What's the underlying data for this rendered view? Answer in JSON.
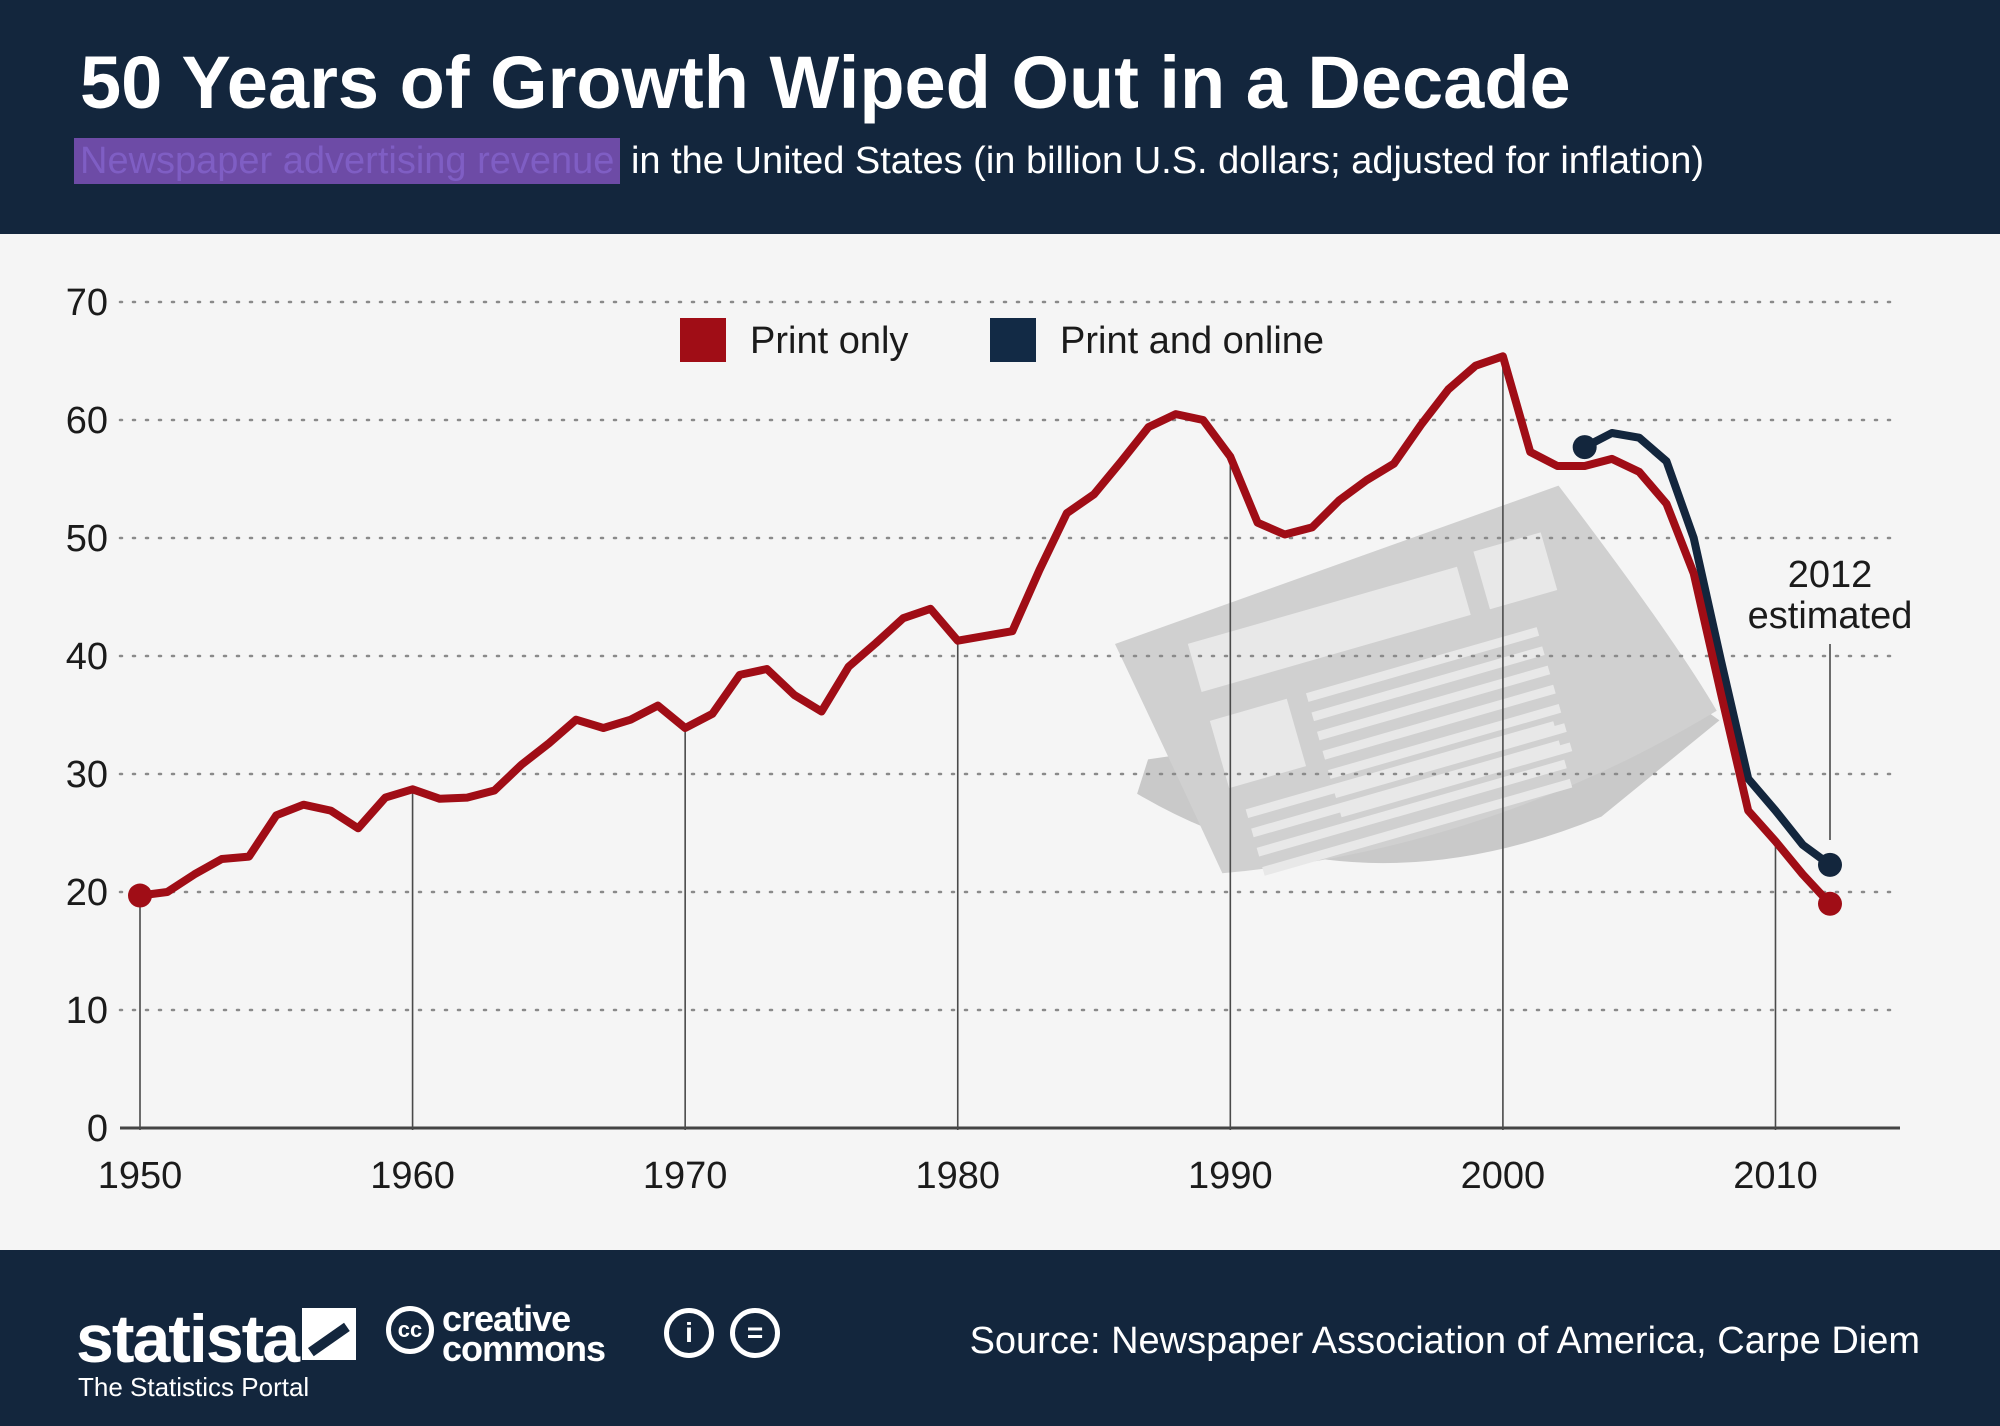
{
  "header": {
    "title": "50 Years of Growth Wiped Out in a Decade",
    "subtitle_highlight": "Newspaper advertising revenue",
    "subtitle_rest": " in the United States (in billion U.S. dollars; adjusted for inflation)"
  },
  "chart_data": {
    "type": "line",
    "title": "",
    "xlabel": "",
    "ylabel": "",
    "xlim": [
      1950,
      2012
    ],
    "ylim": [
      0,
      70
    ],
    "yticks": [
      0,
      10,
      20,
      30,
      40,
      50,
      60,
      70
    ],
    "xticks": [
      1950,
      1960,
      1970,
      1980,
      1990,
      2000,
      2010
    ],
    "grid": "horizontal-dotted",
    "legend": "top-center",
    "annotation": "2012\nestimated",
    "series": [
      {
        "name": "Print only",
        "color": "#a00d16",
        "x": [
          1950,
          1951,
          1952,
          1953,
          1954,
          1955,
          1956,
          1957,
          1958,
          1959,
          1960,
          1961,
          1962,
          1963,
          1964,
          1965,
          1966,
          1967,
          1968,
          1969,
          1970,
          1971,
          1972,
          1973,
          1974,
          1975,
          1976,
          1977,
          1978,
          1979,
          1980,
          1981,
          1982,
          1983,
          1984,
          1985,
          1986,
          1987,
          1988,
          1989,
          1990,
          1991,
          1992,
          1993,
          1994,
          1995,
          1996,
          1997,
          1998,
          1999,
          2000,
          2001,
          2002,
          2003,
          2004,
          2005,
          2006,
          2007,
          2008,
          2009,
          2010,
          2011,
          2012
        ],
        "values": [
          19.7,
          20.0,
          21.5,
          22.8,
          23.0,
          26.5,
          27.4,
          26.9,
          25.4,
          28.0,
          28.7,
          27.9,
          28.0,
          28.6,
          30.8,
          32.6,
          34.6,
          33.9,
          34.6,
          35.8,
          33.9,
          35.1,
          38.4,
          38.9,
          36.7,
          35.3,
          39.1,
          41.1,
          43.2,
          44.0,
          41.3,
          41.7,
          42.1,
          47.3,
          52.1,
          53.7,
          56.5,
          59.4,
          60.5,
          60.0,
          56.9,
          51.3,
          50.3,
          50.9,
          53.2,
          54.9,
          56.3,
          59.6,
          62.6,
          64.6,
          65.4,
          57.3,
          56.1,
          56.1,
          56.7,
          55.6,
          52.9,
          47.0,
          36.8,
          26.9,
          24.3,
          21.5,
          19.0
        ]
      },
      {
        "name": "Print and online",
        "color": "#13263d",
        "x": [
          2003,
          2004,
          2005,
          2006,
          2007,
          2008,
          2009,
          2010,
          2011,
          2012
        ],
        "values": [
          57.7,
          58.9,
          58.5,
          56.5,
          50.0,
          39.6,
          29.6,
          26.9,
          24.0,
          22.3
        ]
      }
    ]
  },
  "footer": {
    "brand": "statista",
    "tagline": "The Statistics Portal",
    "cc_label": "cc",
    "cc_line1": "creative",
    "cc_line2": "commons",
    "by_icon": "i",
    "nd_icon": "=",
    "source": "Source: Newspaper Association of America, Carpe Diem"
  }
}
